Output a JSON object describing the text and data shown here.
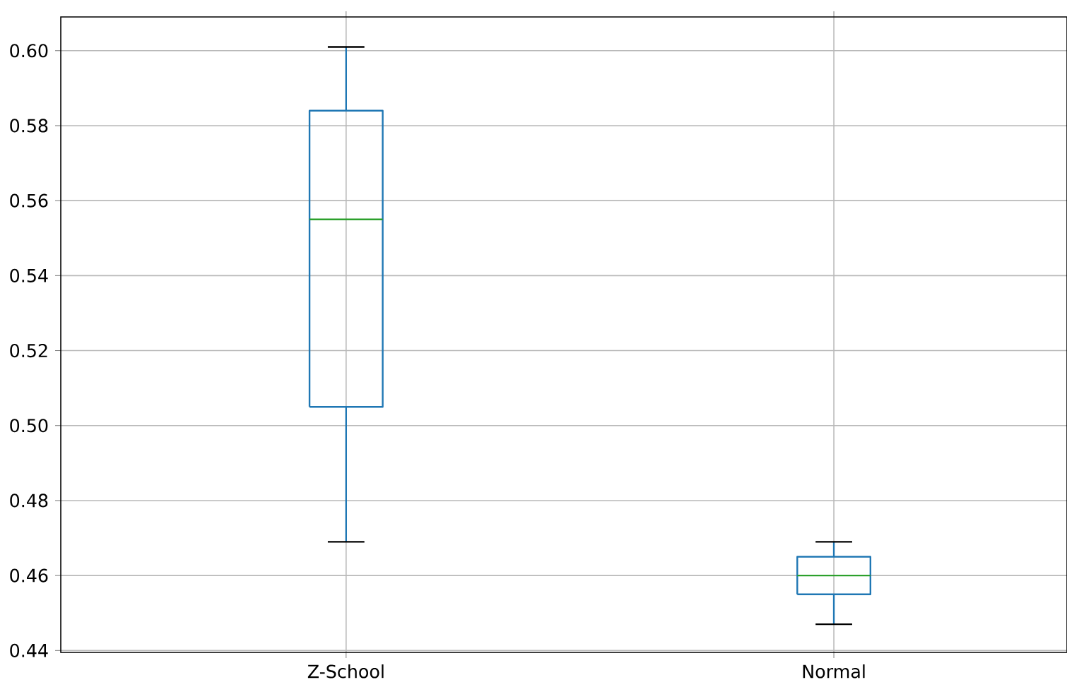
{
  "chart_data": {
    "type": "box",
    "categories": [
      "Z-School",
      "Normal"
    ],
    "boxes": [
      {
        "low": 0.469,
        "q1": 0.505,
        "median": 0.555,
        "q3": 0.584,
        "high": 0.601
      },
      {
        "low": 0.447,
        "q1": 0.455,
        "median": 0.46,
        "q3": 0.465,
        "high": 0.469
      }
    ],
    "color": "#1f77b4",
    "ylim": [
      0.4395,
      0.609
    ],
    "yticks": [
      {
        "value": 0.44,
        "label": "0.44"
      },
      {
        "value": 0.46,
        "label": "0.46"
      },
      {
        "value": 0.48,
        "label": "0.48"
      },
      {
        "value": 0.5,
        "label": "0.50"
      },
      {
        "value": 0.52,
        "label": "0.52"
      },
      {
        "value": 0.54,
        "label": "0.54"
      },
      {
        "value": 0.56,
        "label": "0.56"
      },
      {
        "value": 0.58,
        "label": "0.58"
      },
      {
        "value": 0.6,
        "label": "0.60"
      }
    ],
    "grid": true
  }
}
